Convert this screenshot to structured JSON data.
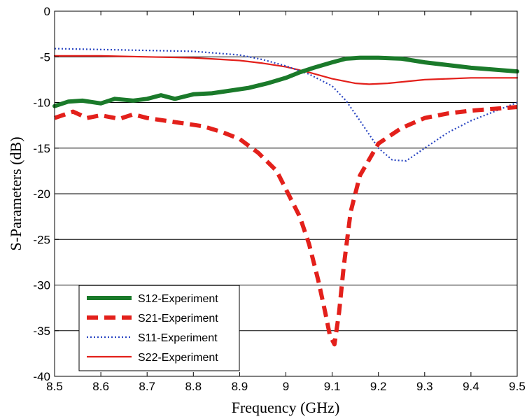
{
  "chart_data": {
    "type": "line",
    "title": "",
    "xlabel": "Frequency (GHz)",
    "ylabel": "S-Parameters (dB)",
    "xlim": [
      8.5,
      9.5
    ],
    "ylim": [
      -40,
      0
    ],
    "x_ticks": [
      "8.5",
      "8.6",
      "8.7",
      "8.8",
      "8.9",
      "9",
      "9.1",
      "9.2",
      "9.3",
      "9.4",
      "9.5"
    ],
    "y_ticks": [
      "0",
      "-5",
      "-10",
      "-15",
      "-20",
      "-25",
      "-30",
      "-35",
      "-40"
    ],
    "grid": "horizontal",
    "legend_position": "bottom-left",
    "series": [
      {
        "name": "S12-Experiment",
        "color": "#1a7a2a",
        "style": "solid-thick",
        "x": [
          8.5,
          8.53,
          8.56,
          8.6,
          8.63,
          8.67,
          8.7,
          8.73,
          8.76,
          8.8,
          8.84,
          8.88,
          8.92,
          8.96,
          9.0,
          9.03,
          9.06,
          9.1,
          9.13,
          9.16,
          9.2,
          9.25,
          9.3,
          9.35,
          9.4,
          9.45,
          9.5
        ],
        "values": [
          -10.4,
          -9.9,
          -9.8,
          -10.1,
          -9.6,
          -9.8,
          -9.6,
          -9.2,
          -9.6,
          -9.1,
          -9.0,
          -8.7,
          -8.4,
          -7.9,
          -7.3,
          -6.7,
          -6.2,
          -5.6,
          -5.2,
          -5.1,
          -5.1,
          -5.2,
          -5.6,
          -5.9,
          -6.2,
          -6.4,
          -6.6
        ]
      },
      {
        "name": "S21-Experiment",
        "color": "#e3201b",
        "style": "dashed-thick",
        "x": [
          8.5,
          8.54,
          8.57,
          8.6,
          8.64,
          8.67,
          8.7,
          8.74,
          8.78,
          8.82,
          8.86,
          8.9,
          8.94,
          8.98,
          9.0,
          9.03,
          9.05,
          9.07,
          9.085,
          9.095,
          9.105,
          9.115,
          9.125,
          9.14,
          9.16,
          9.2,
          9.25,
          9.3,
          9.35,
          9.4,
          9.45,
          9.5
        ],
        "values": [
          -11.7,
          -11.0,
          -11.7,
          -11.4,
          -11.8,
          -11.3,
          -11.7,
          -12.0,
          -12.3,
          -12.6,
          -13.2,
          -14.0,
          -15.5,
          -17.5,
          -19.5,
          -22.5,
          -25.5,
          -29.5,
          -33.0,
          -35.5,
          -36.5,
          -33.0,
          -28.0,
          -22.0,
          -18.0,
          -14.5,
          -12.8,
          -11.7,
          -11.2,
          -10.9,
          -10.7,
          -10.5
        ]
      },
      {
        "name": "S11-Experiment",
        "color": "#2a46c2",
        "style": "dotted",
        "x": [
          8.5,
          8.6,
          8.7,
          8.8,
          8.85,
          8.9,
          8.95,
          9.0,
          9.05,
          9.1,
          9.13,
          9.16,
          9.2,
          9.23,
          9.26,
          9.3,
          9.35,
          9.4,
          9.45,
          9.5
        ],
        "values": [
          -4.1,
          -4.2,
          -4.3,
          -4.4,
          -4.6,
          -4.8,
          -5.3,
          -6.0,
          -6.9,
          -8.2,
          -9.8,
          -12.0,
          -15.0,
          -16.3,
          -16.4,
          -15.0,
          -13.3,
          -12.0,
          -11.0,
          -10.0
        ]
      },
      {
        "name": "S22-Experiment",
        "color": "#e3201b",
        "style": "solid-thin",
        "x": [
          8.5,
          8.6,
          8.7,
          8.8,
          8.9,
          8.95,
          9.0,
          9.05,
          9.1,
          9.15,
          9.18,
          9.22,
          9.26,
          9.3,
          9.35,
          9.4,
          9.45,
          9.5
        ],
        "values": [
          -4.9,
          -4.9,
          -5.0,
          -5.1,
          -5.4,
          -5.7,
          -6.1,
          -6.7,
          -7.4,
          -7.9,
          -8.0,
          -7.9,
          -7.7,
          -7.5,
          -7.4,
          -7.3,
          -7.3,
          -7.3
        ]
      }
    ]
  }
}
